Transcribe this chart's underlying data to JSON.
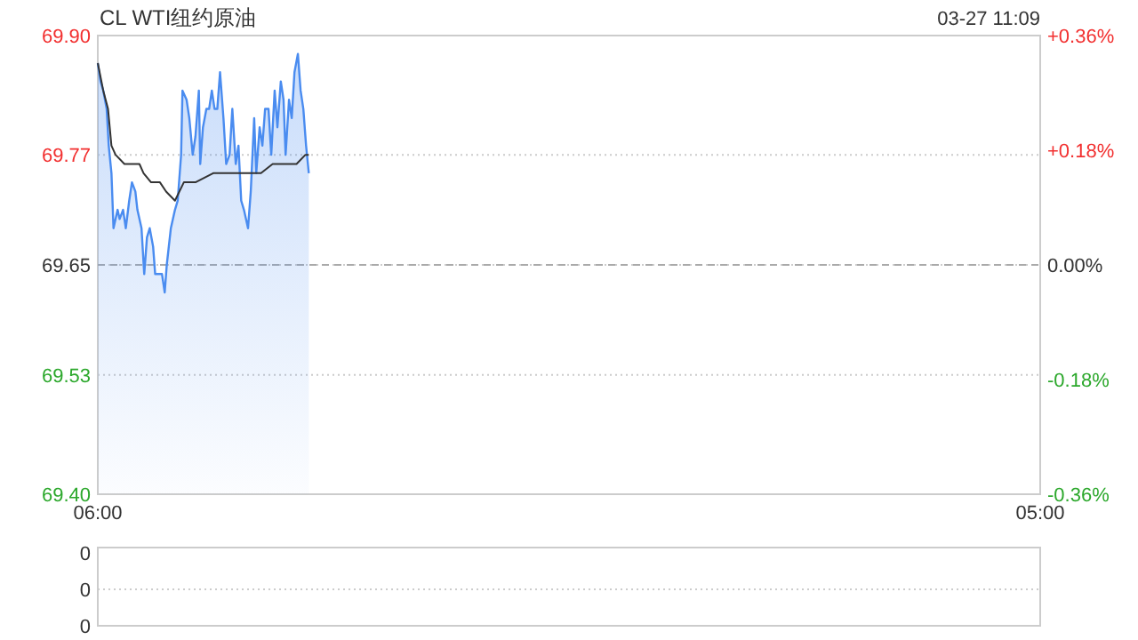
{
  "chart_data": [
    {
      "type": "area",
      "title": "CL WTI纽约原油",
      "annotations": [
        "03-27 11:09"
      ],
      "xlim": [
        "--03-27T06:00",
        "--03-28T05:00"
      ],
      "xticks": [
        {
          "value": "--03-27T06:00",
          "label": "06:00"
        },
        {
          "value": "--03-28T05:00",
          "label": "05:00"
        }
      ],
      "ylim": [
        69.4,
        69.9
      ],
      "yticks": [
        {
          "value": 69.9,
          "label": "69.90"
        },
        {
          "value": 69.77,
          "label": "69.77"
        },
        {
          "value": 69.65,
          "label": "69.65"
        },
        {
          "value": 69.53,
          "label": "69.53"
        },
        {
          "value": 69.4,
          "label": "69.40"
        }
      ],
      "y2lim": [
        -0.36,
        0.36
      ],
      "y2ticks": [
        {
          "value": 0.36,
          "label": "+0.36%"
        },
        {
          "value": 0.18,
          "label": "+0.18%"
        },
        {
          "value": 0,
          "label": "0.00%"
        },
        {
          "value": -0.18,
          "label": "-0.18%"
        },
        {
          "value": -0.36,
          "label": "-0.36%"
        }
      ],
      "grid": "y",
      "ref_lines": [
        {
          "axis": "y",
          "value": 69.65,
          "color": "#aaaaaa",
          "line_style": "dashed"
        }
      ],
      "series": [
        {
          "color": "#4a8cf0",
          "x": [
            "--03-27T06:00",
            "--03-27T06:04",
            "--03-27T06:08",
            "--03-27T06:13",
            "--03-27T06:16",
            "--03-27T06:20",
            "--03-27T06:23",
            "--03-27T06:29",
            "--03-27T06:32",
            "--03-27T06:37",
            "--03-27T06:41",
            "--03-27T06:46",
            "--03-27T06:50",
            "--03-27T06:55",
            "--03-27T06:58",
            "--03-27T07:04",
            "--03-27T07:08",
            "--03-27T07:12",
            "--03-27T07:16",
            "--03-27T07:21",
            "--03-27T07:24",
            "--03-27T07:29",
            "--03-27T07:34",
            "--03-27T07:38",
            "--03-27T07:41",
            "--03-27T07:47",
            "--03-27T07:53",
            "--03-27T07:57",
            "--03-27T08:02",
            "--03-27T08:04",
            "--03-27T08:10",
            "--03-27T08:14",
            "--03-27T08:19",
            "--03-27T08:23",
            "--03-27T08:28",
            "--03-27T08:30",
            "--03-27T08:34",
            "--03-27T08:39",
            "--03-27T08:43",
            "--03-27T08:47",
            "--03-27T08:51",
            "--03-27T08:55",
            "--03-27T08:59",
            "--03-27T09:04",
            "--03-27T09:08",
            "--03-27T09:13",
            "--03-27T09:17",
            "--03-27T09:22",
            "--03-27T09:26",
            "--03-27T09:30",
            "--03-27T09:34",
            "--03-27T09:40",
            "--03-27T09:44",
            "--03-27T09:49",
            "--03-27T09:52",
            "--03-27T09:57",
            "--03-27T10:01",
            "--03-27T10:05",
            "--03-27T10:10",
            "--03-27T10:14",
            "--03-27T10:19",
            "--03-27T10:23",
            "--03-27T10:28",
            "--03-27T10:32",
            "--03-27T10:35",
            "--03-27T10:40",
            "--03-27T10:44",
            "--03-27T10:48",
            "--03-27T10:53",
            "--03-27T10:57",
            "--03-27T11:01",
            "--03-27T11:05",
            "--03-27T11:09"
          ],
          "values": [
            69.87,
            69.85,
            69.84,
            69.82,
            69.78,
            69.75,
            69.69,
            69.71,
            69.7,
            69.71,
            69.69,
            69.72,
            69.74,
            69.73,
            69.71,
            69.69,
            69.64,
            69.68,
            69.69,
            69.67,
            69.64,
            69.64,
            69.64,
            69.62,
            69.65,
            69.69,
            69.71,
            69.72,
            69.77,
            69.84,
            69.83,
            69.81,
            69.77,
            69.79,
            69.84,
            69.76,
            69.8,
            69.82,
            69.82,
            69.84,
            69.82,
            69.82,
            69.86,
            69.81,
            69.76,
            69.77,
            69.82,
            69.76,
            69.78,
            69.72,
            69.71,
            69.69,
            69.73,
            69.81,
            69.75,
            69.8,
            69.78,
            69.82,
            69.82,
            69.77,
            69.84,
            69.8,
            69.85,
            69.83,
            69.77,
            69.83,
            69.81,
            69.86,
            69.88,
            69.84,
            69.82,
            69.78,
            69.75
          ]
        },
        {
          "type": "line",
          "color": "#333333",
          "x": [
            "--03-27T06:00",
            "--03-27T06:08",
            "--03-27T06:15",
            "--03-27T06:20",
            "--03-27T06:26",
            "--03-27T06:39",
            "--03-27T07:01",
            "--03-27T07:07",
            "--03-27T07:18",
            "--03-27T07:31",
            "--03-27T07:40",
            "--03-27T07:53",
            "--03-27T08:06",
            "--03-27T08:23",
            "--03-27T08:49",
            "--03-27T09:07",
            "--03-27T09:24",
            "--03-27T09:41",
            "--03-27T09:59",
            "--03-27T10:16",
            "--03-27T10:34",
            "--03-27T10:51",
            "--03-27T11:04",
            "--03-27T11:09"
          ],
          "values": [
            69.87,
            69.84,
            69.82,
            69.78,
            69.77,
            69.76,
            69.76,
            69.75,
            69.74,
            69.74,
            69.73,
            69.72,
            69.74,
            69.74,
            69.75,
            69.75,
            69.75,
            69.75,
            69.75,
            69.76,
            69.76,
            69.76,
            69.77,
            69.77
          ]
        }
      ]
    },
    {
      "type": "other",
      "annotations": [
        "0",
        "0",
        "0"
      ]
    }
  ]
}
